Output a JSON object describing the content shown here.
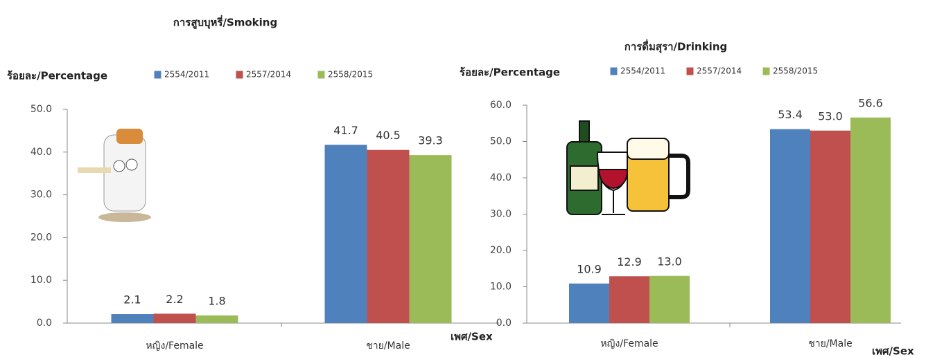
{
  "chart_data": [
    {
      "type": "bar",
      "title": "การสูบบุหรี่/Smoking",
      "y_label": "ร้อยละ/Percentage",
      "x_label": "เพศ/Sex",
      "categories": [
        "หญิง/Female",
        "ชาย/Male"
      ],
      "series": [
        {
          "name": "2554/2011",
          "color": "#4f81bd",
          "values": [
            2.1,
            41.7
          ],
          "value_labels": [
            "2.1",
            "41.7"
          ]
        },
        {
          "name": "2557/2014",
          "color": "#c0504d",
          "values": [
            2.2,
            40.5
          ],
          "value_labels": [
            "2.2",
            "40.5"
          ]
        },
        {
          "name": "2558/2015",
          "color": "#9bbb59",
          "values": [
            1.8,
            39.3
          ],
          "value_labels": [
            "1.8",
            "39.3"
          ]
        }
      ],
      "ylim": [
        0,
        50
      ],
      "yticks": [
        {
          "value": 0,
          "label": "0.0"
        },
        {
          "value": 10,
          "label": "10.0"
        },
        {
          "value": 20,
          "label": "20.0"
        },
        {
          "value": 30,
          "label": "30.0"
        },
        {
          "value": 40,
          "label": "40.0"
        },
        {
          "value": 50,
          "label": "50.0"
        }
      ],
      "legend": "top"
    },
    {
      "type": "bar",
      "title": "การดื่มสุรา/Drinking",
      "y_label": "ร้อยละ/Percentage",
      "x_label": "เพศ/Sex",
      "categories": [
        "หญิง/Female",
        "ชาย/Male"
      ],
      "series": [
        {
          "name": "2554/2011",
          "color": "#4f81bd",
          "values": [
            10.9,
            53.4
          ],
          "value_labels": [
            "10.9",
            "53.4"
          ]
        },
        {
          "name": "2557/2014",
          "color": "#c0504d",
          "values": [
            12.9,
            53
          ],
          "value_labels": [
            "12.9",
            "53.0"
          ]
        },
        {
          "name": "2558/2015",
          "color": "#9bbb59",
          "values": [
            13,
            56.6
          ],
          "value_labels": [
            "13.0",
            "56.6"
          ]
        }
      ],
      "ylim": [
        0,
        60
      ],
      "yticks": [
        {
          "value": 0,
          "label": "0.0"
        },
        {
          "value": 10,
          "label": "10.0"
        },
        {
          "value": 20,
          "label": "20.0"
        },
        {
          "value": 30,
          "label": "30.0"
        },
        {
          "value": 40,
          "label": "40.0"
        },
        {
          "value": 50,
          "label": "50.0"
        },
        {
          "value": 60,
          "label": "60.0"
        }
      ],
      "legend": "top"
    }
  ]
}
